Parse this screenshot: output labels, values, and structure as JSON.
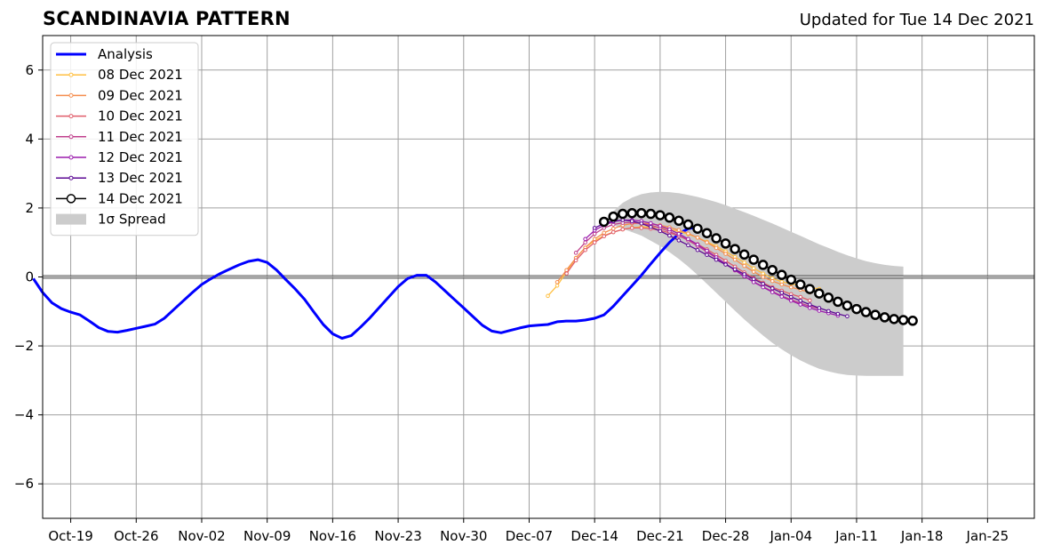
{
  "header": {
    "title": "SCANDINAVIA PATTERN",
    "updated": "Updated for Tue 14 Dec 2021"
  },
  "chart_data": {
    "type": "line",
    "title": "SCANDINAVIA PATTERN",
    "subtitle": "Updated for Tue 14 Dec 2021",
    "xlabel": "",
    "ylabel": "",
    "x_axis": {
      "type": "date",
      "start": "2021-10-16",
      "end": "2022-01-30"
    },
    "ylim": [
      -7,
      7
    ],
    "grid": true,
    "legend_position": "top-left",
    "x_ticks": [
      {
        "label": "Oct-19",
        "date": "2021-10-19"
      },
      {
        "label": "Oct-26",
        "date": "2021-10-26"
      },
      {
        "label": "Nov-02",
        "date": "2021-11-02"
      },
      {
        "label": "Nov-09",
        "date": "2021-11-09"
      },
      {
        "label": "Nov-16",
        "date": "2021-11-16"
      },
      {
        "label": "Nov-23",
        "date": "2021-11-23"
      },
      {
        "label": "Nov-30",
        "date": "2021-11-30"
      },
      {
        "label": "Dec-07",
        "date": "2021-12-07"
      },
      {
        "label": "Dec-14",
        "date": "2021-12-14"
      },
      {
        "label": "Dec-21",
        "date": "2021-12-21"
      },
      {
        "label": "Dec-28",
        "date": "2021-12-28"
      },
      {
        "label": "Jan-04",
        "date": "2022-01-04"
      },
      {
        "label": "Jan-11",
        "date": "2022-01-11"
      },
      {
        "label": "Jan-18",
        "date": "2022-01-18"
      },
      {
        "label": "Jan-25",
        "date": "2022-01-25"
      }
    ],
    "y_ticks": [
      {
        "label": "6",
        "value": 6
      },
      {
        "label": "4",
        "value": 4
      },
      {
        "label": "2",
        "value": 2
      },
      {
        "label": "0",
        "value": 0
      },
      {
        "label": "−2",
        "value": -2
      },
      {
        "label": "−4",
        "value": -4
      },
      {
        "label": "−6",
        "value": -6
      }
    ],
    "spread": {
      "name": "1σ Spread",
      "color": "#cccccc",
      "start": "2021-12-15",
      "upper": [
        1.6,
        1.9,
        2.15,
        2.3,
        2.4,
        2.45,
        2.47,
        2.46,
        2.43,
        2.38,
        2.32,
        2.25,
        2.17,
        2.08,
        1.98,
        1.88,
        1.77,
        1.66,
        1.55,
        1.43,
        1.31,
        1.19,
        1.07,
        0.95,
        0.84,
        0.73,
        0.63,
        0.54,
        0.46,
        0.4,
        0.35,
        0.32,
        0.3
      ],
      "lower": [
        1.6,
        1.5,
        1.4,
        1.3,
        1.2,
        1.05,
        0.9,
        0.72,
        0.52,
        0.3,
        0.06,
        -0.2,
        -0.46,
        -0.72,
        -0.98,
        -1.23,
        -1.47,
        -1.7,
        -1.91,
        -2.1,
        -2.27,
        -2.42,
        -2.55,
        -2.66,
        -2.74,
        -2.8,
        -2.84,
        -2.86,
        -2.87,
        -2.87,
        -2.87,
        -2.87,
        -2.87
      ]
    },
    "series": [
      {
        "name": "Analysis",
        "color": "#0000ff",
        "width": 3,
        "marker": false,
        "start": "2021-10-15",
        "values": [
          -0.05,
          -0.45,
          -0.75,
          -0.92,
          -1.02,
          -1.1,
          -1.28,
          -1.47,
          -1.58,
          -1.6,
          -1.55,
          -1.49,
          -1.43,
          -1.37,
          -1.2,
          -0.95,
          -0.7,
          -0.45,
          -0.22,
          -0.05,
          0.1,
          0.23,
          0.35,
          0.45,
          0.5,
          0.42,
          0.2,
          -0.08,
          -0.35,
          -0.65,
          -1.02,
          -1.38,
          -1.65,
          -1.78,
          -1.7,
          -1.45,
          -1.18,
          -0.88,
          -0.58,
          -0.28,
          -0.05,
          0.05,
          0.05,
          -0.15,
          -0.4,
          -0.65,
          -0.9,
          -1.15,
          -1.4,
          -1.57,
          -1.62,
          -1.55,
          -1.48,
          -1.42,
          -1.4,
          -1.38,
          -1.3,
          -1.28,
          -1.28,
          -1.25,
          -1.2,
          -1.1,
          -0.85,
          -0.55,
          -0.25,
          0.05,
          0.38,
          0.7,
          1.0,
          1.25,
          1.4,
          1.45
        ]
      },
      {
        "name": "08 Dec 2021",
        "color": "#ffbf40",
        "marker": true,
        "start": "2021-12-09",
        "values": [
          -0.55,
          -0.25,
          0.15,
          0.55,
          0.85,
          1.05,
          1.2,
          1.3,
          1.38,
          1.43,
          1.45,
          1.45,
          1.43,
          1.38,
          1.32,
          1.24,
          1.14,
          1.02,
          0.89,
          0.74,
          0.58,
          0.42,
          0.25,
          0.1,
          -0.04,
          -0.14,
          -0.2,
          -0.25,
          -0.3,
          -0.35
        ]
      },
      {
        "name": "09 Dec 2021",
        "color": "#f58d4e",
        "marker": true,
        "start": "2021-12-10",
        "values": [
          -0.15,
          0.2,
          0.55,
          0.85,
          1.1,
          1.28,
          1.4,
          1.5,
          1.55,
          1.56,
          1.54,
          1.5,
          1.44,
          1.36,
          1.26,
          1.14,
          1.0,
          0.84,
          0.67,
          0.5,
          0.32,
          0.15,
          0.0,
          -0.12,
          -0.22,
          -0.3,
          -0.37,
          -0.45
        ]
      },
      {
        "name": "10 Dec 2021",
        "color": "#e05c6a",
        "marker": true,
        "start": "2021-12-11",
        "values": [
          0.1,
          0.48,
          0.78,
          1.0,
          1.18,
          1.3,
          1.38,
          1.42,
          1.42,
          1.4,
          1.35,
          1.28,
          1.19,
          1.08,
          0.95,
          0.8,
          0.64,
          0.47,
          0.3,
          0.13,
          -0.03,
          -0.17,
          -0.3,
          -0.4,
          -0.5,
          -0.58,
          -0.68
        ]
      },
      {
        "name": "11 Dec 2021",
        "color": "#c0408c",
        "marker": true,
        "start": "2021-12-12",
        "values": [
          0.7,
          1.0,
          1.25,
          1.42,
          1.52,
          1.57,
          1.58,
          1.55,
          1.5,
          1.42,
          1.32,
          1.2,
          1.06,
          0.9,
          0.73,
          0.55,
          0.37,
          0.19,
          0.02,
          -0.14,
          -0.28,
          -0.42,
          -0.55,
          -0.66,
          -0.76,
          -0.85,
          -0.92
        ]
      },
      {
        "name": "12 Dec 2021",
        "color": "#9b1dad",
        "marker": true,
        "start": "2021-12-13",
        "values": [
          1.1,
          1.35,
          1.5,
          1.6,
          1.65,
          1.65,
          1.62,
          1.56,
          1.48,
          1.38,
          1.25,
          1.1,
          0.94,
          0.76,
          0.57,
          0.38,
          0.2,
          0.02,
          -0.15,
          -0.3,
          -0.44,
          -0.57,
          -0.69,
          -0.8,
          -0.9,
          -0.98,
          -1.05,
          -1.12
        ]
      },
      {
        "name": "13 Dec 2021",
        "color": "#5c0a94",
        "marker": true,
        "start": "2021-12-14",
        "values": [
          1.42,
          1.55,
          1.62,
          1.65,
          1.62,
          1.55,
          1.45,
          1.33,
          1.2,
          1.06,
          0.92,
          0.78,
          0.64,
          0.5,
          0.36,
          0.22,
          0.08,
          -0.06,
          -0.2,
          -0.33,
          -0.46,
          -0.58,
          -0.69,
          -0.8,
          -0.9,
          -0.99,
          -1.07,
          -1.14
        ]
      },
      {
        "name": "14 Dec 2021",
        "color": "#000000",
        "marker": true,
        "big_marker": true,
        "start": "2021-12-15",
        "values": [
          1.6,
          1.75,
          1.83,
          1.85,
          1.85,
          1.83,
          1.79,
          1.72,
          1.63,
          1.52,
          1.4,
          1.27,
          1.12,
          0.97,
          0.81,
          0.65,
          0.5,
          0.35,
          0.2,
          0.06,
          -0.08,
          -0.22,
          -0.35,
          -0.48,
          -0.6,
          -0.72,
          -0.83,
          -0.93,
          -1.02,
          -1.1,
          -1.17,
          -1.22,
          -1.25,
          -1.27
        ]
      }
    ]
  }
}
